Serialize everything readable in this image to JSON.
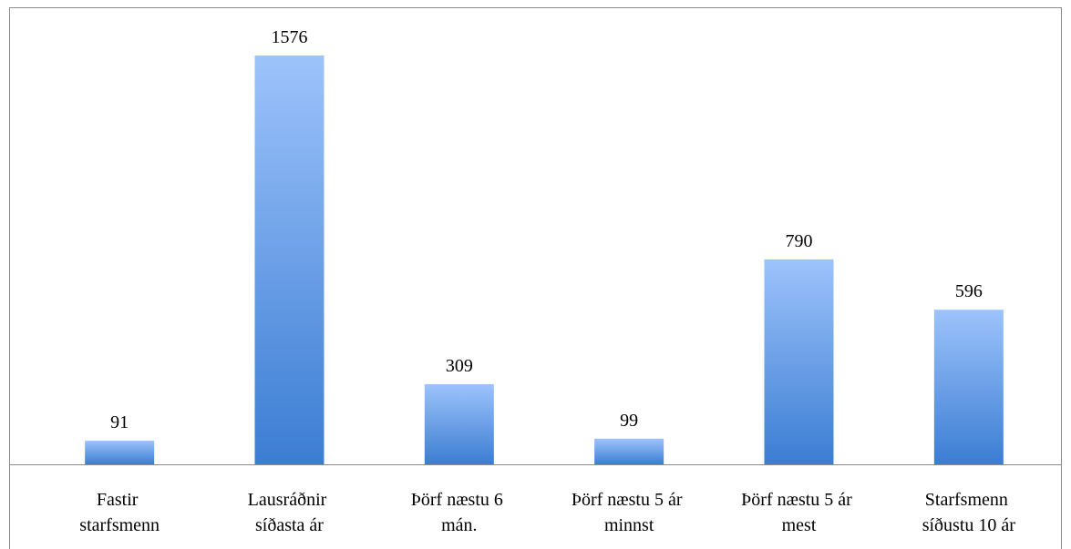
{
  "chart_data": {
    "type": "bar",
    "categories": [
      "Fastir starfsmenn",
      "Lausráðnir síðasta ár",
      "Þörf næstu 6 mán.",
      "Þörf næstu 5 ár minnst",
      "Þörf næstu 5 ár mest",
      "Starfsmenn síðustu 10 ár"
    ],
    "values": [
      91,
      1576,
      309,
      99,
      790,
      596
    ]
  }
}
